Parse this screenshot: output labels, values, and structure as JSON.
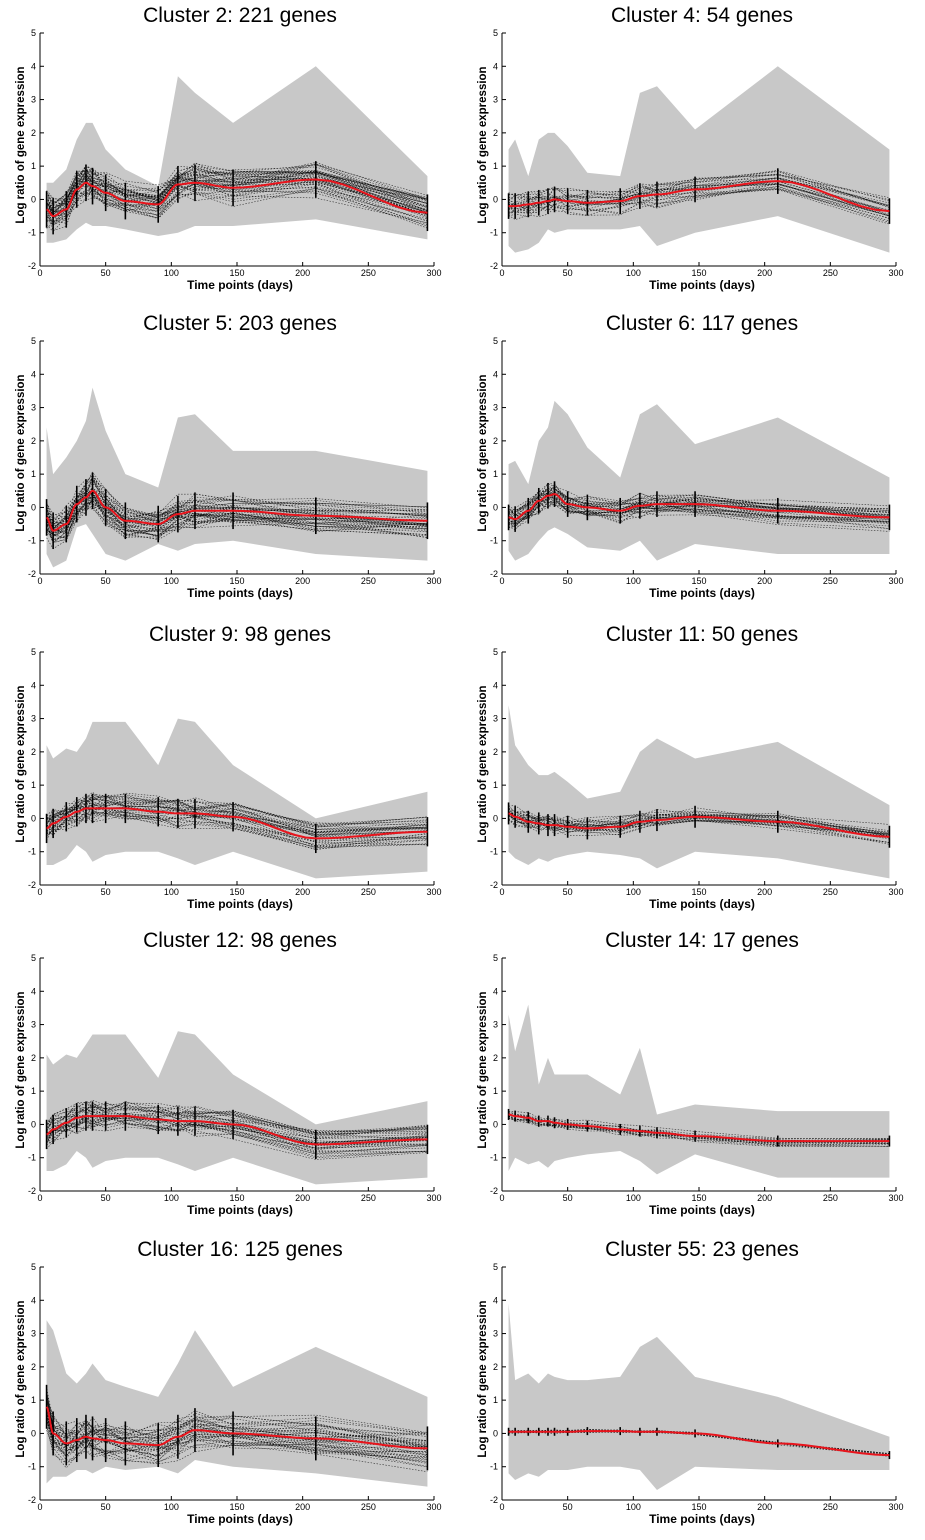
{
  "figure": {
    "colors": {
      "band": "#c8c8c8",
      "profiles": "#000000",
      "mean": "#e8141c",
      "axis": "#000000"
    }
  },
  "chart_data": [
    {
      "type": "line",
      "title": "Cluster 2: 221 genes",
      "xlabel": "Time points (days)",
      "ylabel": "Log ratio of gene expression",
      "xlim": [
        0,
        300
      ],
      "ylim": [
        -2,
        5
      ],
      "xticks": [
        0,
        50,
        100,
        150,
        200,
        250,
        300
      ],
      "yticks": [
        -2,
        -1,
        0,
        1,
        2,
        3,
        4,
        5
      ],
      "x": [
        5,
        10,
        20,
        28,
        35,
        40,
        50,
        65,
        90,
        105,
        118,
        147,
        210,
        295
      ],
      "band_upper": [
        0.5,
        0.5,
        0.9,
        1.8,
        2.3,
        2.3,
        1.5,
        0.9,
        0.4,
        3.7,
        3.2,
        2.3,
        4.0,
        0.7
      ],
      "band_lower": [
        -1.3,
        -1.3,
        -1.2,
        -0.9,
        -0.7,
        -0.8,
        -0.8,
        -0.9,
        -1.1,
        -1.0,
        -0.8,
        -0.8,
        -0.6,
        -1.2
      ],
      "mean": [
        -0.3,
        -0.5,
        -0.3,
        0.3,
        0.5,
        0.4,
        0.2,
        -0.05,
        -0.15,
        0.45,
        0.5,
        0.35,
        0.6,
        -0.4
      ],
      "spread": 0.5,
      "profile_count": 46
    },
    {
      "type": "line",
      "title": "Cluster 4: 54 genes",
      "xlabel": "Time points (days)",
      "ylabel": "Log ratio of gene expression",
      "xlim": [
        0,
        300
      ],
      "ylim": [
        -2,
        5
      ],
      "xticks": [
        0,
        50,
        100,
        150,
        200,
        250,
        300
      ],
      "yticks": [
        -2,
        -1,
        0,
        1,
        2,
        3,
        4,
        5
      ],
      "x": [
        5,
        10,
        20,
        28,
        35,
        40,
        50,
        65,
        90,
        105,
        118,
        147,
        210,
        295
      ],
      "band_upper": [
        1.5,
        1.8,
        0.7,
        1.8,
        2.0,
        2.0,
        1.6,
        0.8,
        0.7,
        3.2,
        3.4,
        2.1,
        4.0,
        1.5
      ],
      "band_lower": [
        -1.4,
        -1.6,
        -1.5,
        -1.3,
        -0.9,
        -1.0,
        -0.9,
        -0.9,
        -0.9,
        -0.8,
        -1.4,
        -1.0,
        -0.5,
        -1.6
      ],
      "mean": [
        -0.2,
        -0.2,
        -0.15,
        -0.1,
        -0.05,
        0.0,
        -0.05,
        -0.1,
        -0.05,
        0.1,
        0.15,
        0.3,
        0.55,
        -0.35
      ],
      "spread": 0.35,
      "profile_count": 26
    },
    {
      "type": "line",
      "title": "Cluster 5: 203 genes",
      "xlabel": "Time points (days)",
      "ylabel": "Log ratio of gene expression",
      "xlim": [
        0,
        300
      ],
      "ylim": [
        -2,
        5
      ],
      "xticks": [
        0,
        50,
        100,
        150,
        200,
        250,
        300
      ],
      "yticks": [
        -2,
        -1,
        0,
        1,
        2,
        3,
        4,
        5
      ],
      "x": [
        5,
        10,
        20,
        28,
        35,
        40,
        50,
        65,
        90,
        105,
        118,
        147,
        210,
        295
      ],
      "band_upper": [
        2.4,
        1.0,
        1.5,
        2.0,
        2.6,
        3.6,
        2.3,
        1.0,
        0.6,
        2.7,
        2.8,
        1.7,
        1.7,
        1.1
      ],
      "band_lower": [
        -1.4,
        -1.8,
        -1.6,
        -0.6,
        -0.5,
        -0.8,
        -1.4,
        -1.6,
        -1.1,
        -1.3,
        -1.1,
        -1.0,
        -1.4,
        -1.6
      ],
      "mean": [
        -0.3,
        -0.7,
        -0.5,
        0.1,
        0.3,
        0.5,
        0.0,
        -0.4,
        -0.5,
        -0.2,
        -0.1,
        -0.1,
        -0.25,
        -0.4
      ],
      "spread": 0.5,
      "profile_count": 46
    },
    {
      "type": "line",
      "title": "Cluster 6: 117 genes",
      "xlabel": "Time points (days)",
      "ylabel": "Log ratio of gene expression",
      "xlim": [
        0,
        300
      ],
      "ylim": [
        -2,
        5
      ],
      "xticks": [
        0,
        50,
        100,
        150,
        200,
        250,
        300
      ],
      "yticks": [
        -2,
        -1,
        0,
        1,
        2,
        3,
        4,
        5
      ],
      "x": [
        5,
        10,
        20,
        28,
        35,
        40,
        50,
        65,
        90,
        105,
        118,
        147,
        210,
        295
      ],
      "band_upper": [
        1.3,
        1.4,
        0.7,
        2.0,
        2.4,
        3.2,
        2.8,
        1.8,
        0.9,
        2.8,
        3.1,
        1.9,
        2.7,
        0.9
      ],
      "band_lower": [
        -1.3,
        -1.6,
        -1.4,
        -1.0,
        -0.7,
        -0.6,
        -0.8,
        -1.2,
        -1.3,
        -1.0,
        -1.6,
        -1.1,
        -1.4,
        -1.4
      ],
      "mean": [
        -0.3,
        -0.35,
        -0.1,
        0.2,
        0.35,
        0.4,
        0.1,
        0.0,
        -0.1,
        0.05,
        0.1,
        0.1,
        -0.1,
        -0.3
      ],
      "spread": 0.35,
      "profile_count": 36
    },
    {
      "type": "line",
      "title": "Cluster 9: 98 genes",
      "xlabel": "Time points (days)",
      "ylabel": "Log ratio of gene expression",
      "xlim": [
        0,
        300
      ],
      "ylim": [
        -2,
        5
      ],
      "xticks": [
        0,
        50,
        100,
        150,
        200,
        250,
        300
      ],
      "yticks": [
        -2,
        -1,
        0,
        1,
        2,
        3,
        4,
        5
      ],
      "x": [
        5,
        10,
        20,
        28,
        35,
        40,
        50,
        65,
        90,
        105,
        118,
        147,
        210,
        295
      ],
      "band_upper": [
        2.2,
        1.8,
        2.1,
        2.0,
        2.4,
        2.9,
        2.9,
        2.9,
        1.6,
        3.0,
        2.9,
        1.6,
        0.0,
        0.8
      ],
      "band_lower": [
        -1.4,
        -1.4,
        -1.2,
        -0.8,
        -1.0,
        -1.3,
        -1.1,
        -1.0,
        -1.0,
        -1.2,
        -1.4,
        -1.0,
        -1.8,
        -1.6
      ],
      "mean": [
        -0.3,
        -0.15,
        0.05,
        0.2,
        0.3,
        0.3,
        0.3,
        0.3,
        0.2,
        0.15,
        0.15,
        0.05,
        -0.6,
        -0.4
      ],
      "spread": 0.4,
      "profile_count": 36
    },
    {
      "type": "line",
      "title": "Cluster 11: 50 genes",
      "xlabel": "Time points (days)",
      "ylabel": "Log ratio of gene expression",
      "xlim": [
        0,
        300
      ],
      "ylim": [
        -2,
        5
      ],
      "xticks": [
        0,
        50,
        100,
        150,
        200,
        250,
        300
      ],
      "yticks": [
        -2,
        -1,
        0,
        1,
        2,
        3,
        4,
        5
      ],
      "x": [
        5,
        10,
        20,
        28,
        35,
        40,
        50,
        65,
        90,
        105,
        118,
        147,
        210,
        295
      ],
      "band_upper": [
        3.4,
        2.2,
        1.6,
        1.3,
        1.3,
        1.4,
        1.1,
        0.6,
        0.8,
        2.0,
        2.4,
        1.8,
        2.3,
        0.4
      ],
      "band_lower": [
        -1.0,
        -1.2,
        -1.4,
        -1.2,
        -1.3,
        -1.2,
        -1.1,
        -1.0,
        -1.1,
        -1.2,
        -1.5,
        -1.0,
        -1.2,
        -1.8
      ],
      "mean": [
        0.15,
        0.05,
        -0.1,
        -0.15,
        -0.2,
        -0.2,
        -0.25,
        -0.3,
        -0.25,
        -0.1,
        -0.05,
        0.05,
        -0.1,
        -0.55
      ],
      "spread": 0.3,
      "profile_count": 26
    },
    {
      "type": "line",
      "title": "Cluster 12: 98 genes",
      "xlabel": "Time points (days)",
      "ylabel": "Log ratio of gene expression",
      "xlim": [
        0,
        300
      ],
      "ylim": [
        -2,
        5
      ],
      "xticks": [
        0,
        50,
        100,
        150,
        200,
        250,
        300
      ],
      "yticks": [
        -2,
        -1,
        0,
        1,
        2,
        3,
        4,
        5
      ],
      "x": [
        5,
        10,
        20,
        28,
        35,
        40,
        50,
        65,
        90,
        105,
        118,
        147,
        210,
        295
      ],
      "band_upper": [
        2.1,
        1.8,
        2.1,
        2.0,
        2.4,
        2.7,
        2.7,
        2.7,
        1.4,
        2.8,
        2.7,
        1.5,
        0.0,
        0.7
      ],
      "band_lower": [
        -1.4,
        -1.4,
        -1.2,
        -0.8,
        -1.0,
        -1.3,
        -1.1,
        -1.0,
        -1.0,
        -1.2,
        -1.4,
        -1.0,
        -1.8,
        -1.6
      ],
      "mean": [
        -0.3,
        -0.15,
        0.05,
        0.2,
        0.25,
        0.25,
        0.25,
        0.25,
        0.15,
        0.1,
        0.1,
        0.0,
        -0.6,
        -0.45
      ],
      "spread": 0.4,
      "profile_count": 36
    },
    {
      "type": "line",
      "title": "Cluster 14: 17 genes",
      "xlabel": "Time points (days)",
      "ylabel": "Log ratio of gene expression",
      "xlim": [
        0,
        300
      ],
      "ylim": [
        -2,
        5
      ],
      "xticks": [
        0,
        50,
        100,
        150,
        200,
        250,
        300
      ],
      "yticks": [
        -2,
        -1,
        0,
        1,
        2,
        3,
        4,
        5
      ],
      "x": [
        5,
        10,
        20,
        28,
        35,
        40,
        50,
        65,
        90,
        105,
        118,
        147,
        210,
        295
      ],
      "band_upper": [
        3.3,
        2.2,
        3.6,
        1.2,
        2.0,
        1.5,
        1.5,
        1.5,
        0.9,
        2.3,
        0.3,
        0.6,
        0.4,
        0.4
      ],
      "band_lower": [
        -1.4,
        -1.0,
        -1.2,
        -1.1,
        -1.3,
        -1.1,
        -1.0,
        -0.9,
        -0.8,
        -1.1,
        -1.5,
        -0.9,
        -1.6,
        -1.6
      ],
      "mean": [
        0.3,
        0.25,
        0.2,
        0.1,
        0.1,
        0.05,
        0.0,
        -0.05,
        -0.15,
        -0.2,
        -0.25,
        -0.35,
        -0.5,
        -0.5
      ],
      "spread": 0.15,
      "profile_count": 16
    },
    {
      "type": "line",
      "title": "Cluster 16: 125 genes",
      "xlabel": "Time points (days)",
      "ylabel": "Log ratio of gene expression",
      "xlim": [
        0,
        300
      ],
      "ylim": [
        -2,
        5
      ],
      "xticks": [
        0,
        50,
        100,
        150,
        200,
        250,
        300
      ],
      "yticks": [
        -2,
        -1,
        0,
        1,
        2,
        3,
        4,
        5
      ],
      "x": [
        5,
        10,
        20,
        28,
        35,
        40,
        50,
        65,
        90,
        105,
        118,
        147,
        210,
        295
      ],
      "band_upper": [
        3.4,
        3.1,
        1.8,
        1.5,
        1.8,
        2.1,
        1.6,
        1.4,
        1.1,
        2.1,
        3.1,
        1.4,
        2.6,
        1.1
      ],
      "band_lower": [
        -1.5,
        -1.3,
        -1.3,
        -1.1,
        -1.1,
        -1.2,
        -1.0,
        -1.1,
        -1.0,
        -1.2,
        -0.8,
        -1.0,
        -1.2,
        -1.6
      ],
      "mean": [
        0.8,
        0.0,
        -0.3,
        -0.2,
        -0.1,
        -0.15,
        -0.2,
        -0.3,
        -0.35,
        -0.1,
        0.1,
        0.0,
        -0.15,
        -0.45
      ],
      "spread": 0.6,
      "profile_count": 40
    },
    {
      "type": "line",
      "title": "Cluster 55: 23 genes",
      "xlabel": "Time points (days)",
      "ylabel": "Log ratio of gene expression",
      "xlim": [
        0,
        300
      ],
      "ylim": [
        -2,
        5
      ],
      "xticks": [
        0,
        50,
        100,
        150,
        200,
        250,
        300
      ],
      "yticks": [
        -2,
        -1,
        0,
        1,
        2,
        3,
        4,
        5
      ],
      "x": [
        5,
        10,
        20,
        28,
        35,
        40,
        50,
        65,
        90,
        105,
        118,
        147,
        210,
        295
      ],
      "band_upper": [
        3.9,
        1.6,
        1.8,
        1.5,
        1.8,
        1.7,
        1.6,
        1.6,
        1.7,
        2.6,
        2.9,
        1.7,
        1.1,
        -0.1
      ],
      "band_lower": [
        -1.2,
        -1.4,
        -1.2,
        -1.3,
        -1.1,
        -1.1,
        -1.1,
        -1.0,
        -1.0,
        -1.1,
        -1.7,
        -1.0,
        -1.1,
        -1.1
      ],
      "mean": [
        0.05,
        0.05,
        0.05,
        0.05,
        0.05,
        0.05,
        0.05,
        0.07,
        0.07,
        0.05,
        0.05,
        0.0,
        -0.3,
        -0.65
      ],
      "spread": 0.05,
      "profile_count": 10
    }
  ]
}
